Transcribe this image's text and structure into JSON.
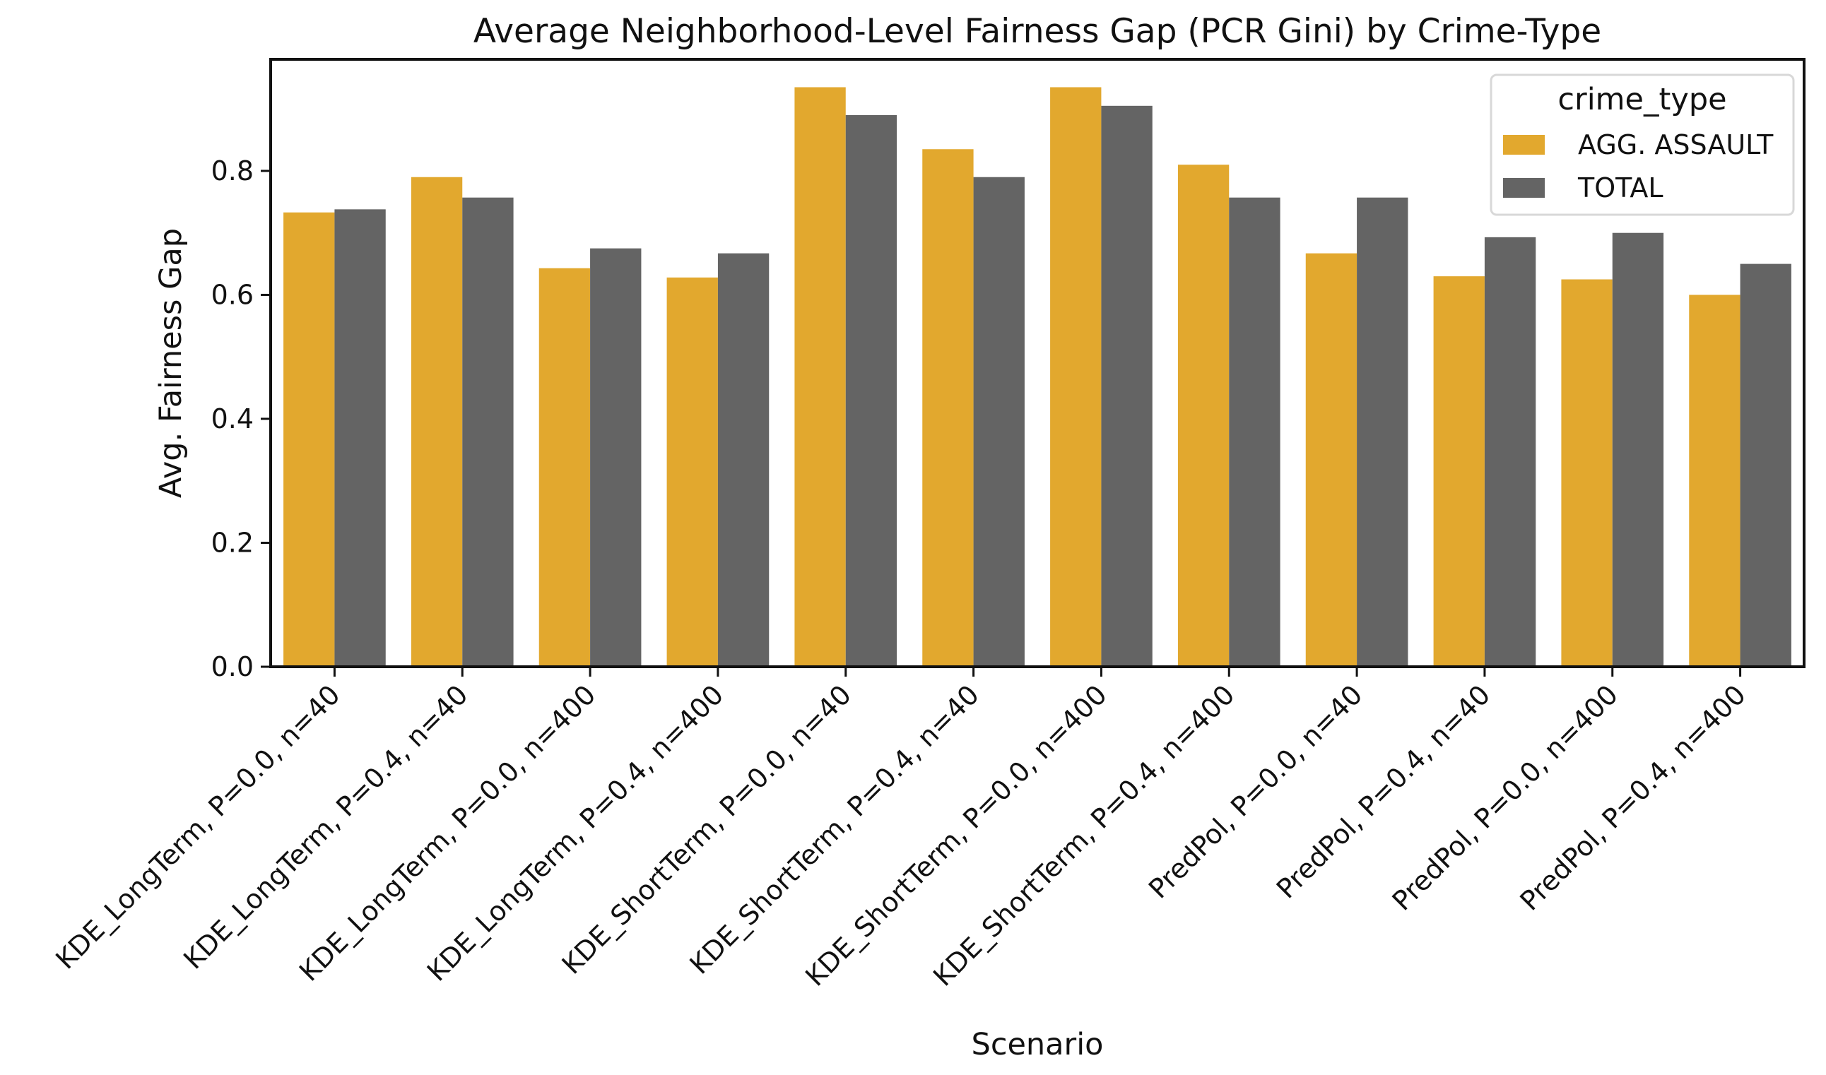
{
  "chart_data": {
    "type": "bar",
    "title": "Average Neighborhood-Level Fairness Gap (PCR Gini) by Crime-Type",
    "xlabel": "Scenario",
    "ylabel": "Avg. Fairness Gap",
    "ylim": [
      0,
      0.98
    ],
    "yticks": [
      "0.0",
      "0.2",
      "0.4",
      "0.6",
      "0.8"
    ],
    "grid": false,
    "legend": {
      "title": "crime_type",
      "placement": "top-right"
    },
    "categories": [
      "KDE_LongTerm, P=0.0, n=40",
      "KDE_LongTerm, P=0.4, n=40",
      "KDE_LongTerm, P=0.0, n=400",
      "KDE_LongTerm, P=0.4, n=400",
      "KDE_ShortTerm, P=0.0, n=40",
      "KDE_ShortTerm, P=0.4, n=40",
      "KDE_ShortTerm, P=0.0, n=400",
      "KDE_ShortTerm, P=0.4, n=400",
      "PredPol, P=0.0, n=40",
      "PredPol, P=0.4, n=40",
      "PredPol, P=0.0, n=400",
      "PredPol, P=0.4, n=400"
    ],
    "series": [
      {
        "name": "AGG. ASSAULT",
        "color": "#E2A82E",
        "values": [
          0.733,
          0.79,
          0.643,
          0.628,
          0.935,
          0.835,
          0.935,
          0.81,
          0.667,
          0.63,
          0.625,
          0.6
        ]
      },
      {
        "name": "TOTAL",
        "color": "#646464",
        "values": [
          0.738,
          0.757,
          0.675,
          0.667,
          0.89,
          0.79,
          0.905,
          0.757,
          0.757,
          0.693,
          0.7,
          0.65
        ]
      }
    ]
  }
}
